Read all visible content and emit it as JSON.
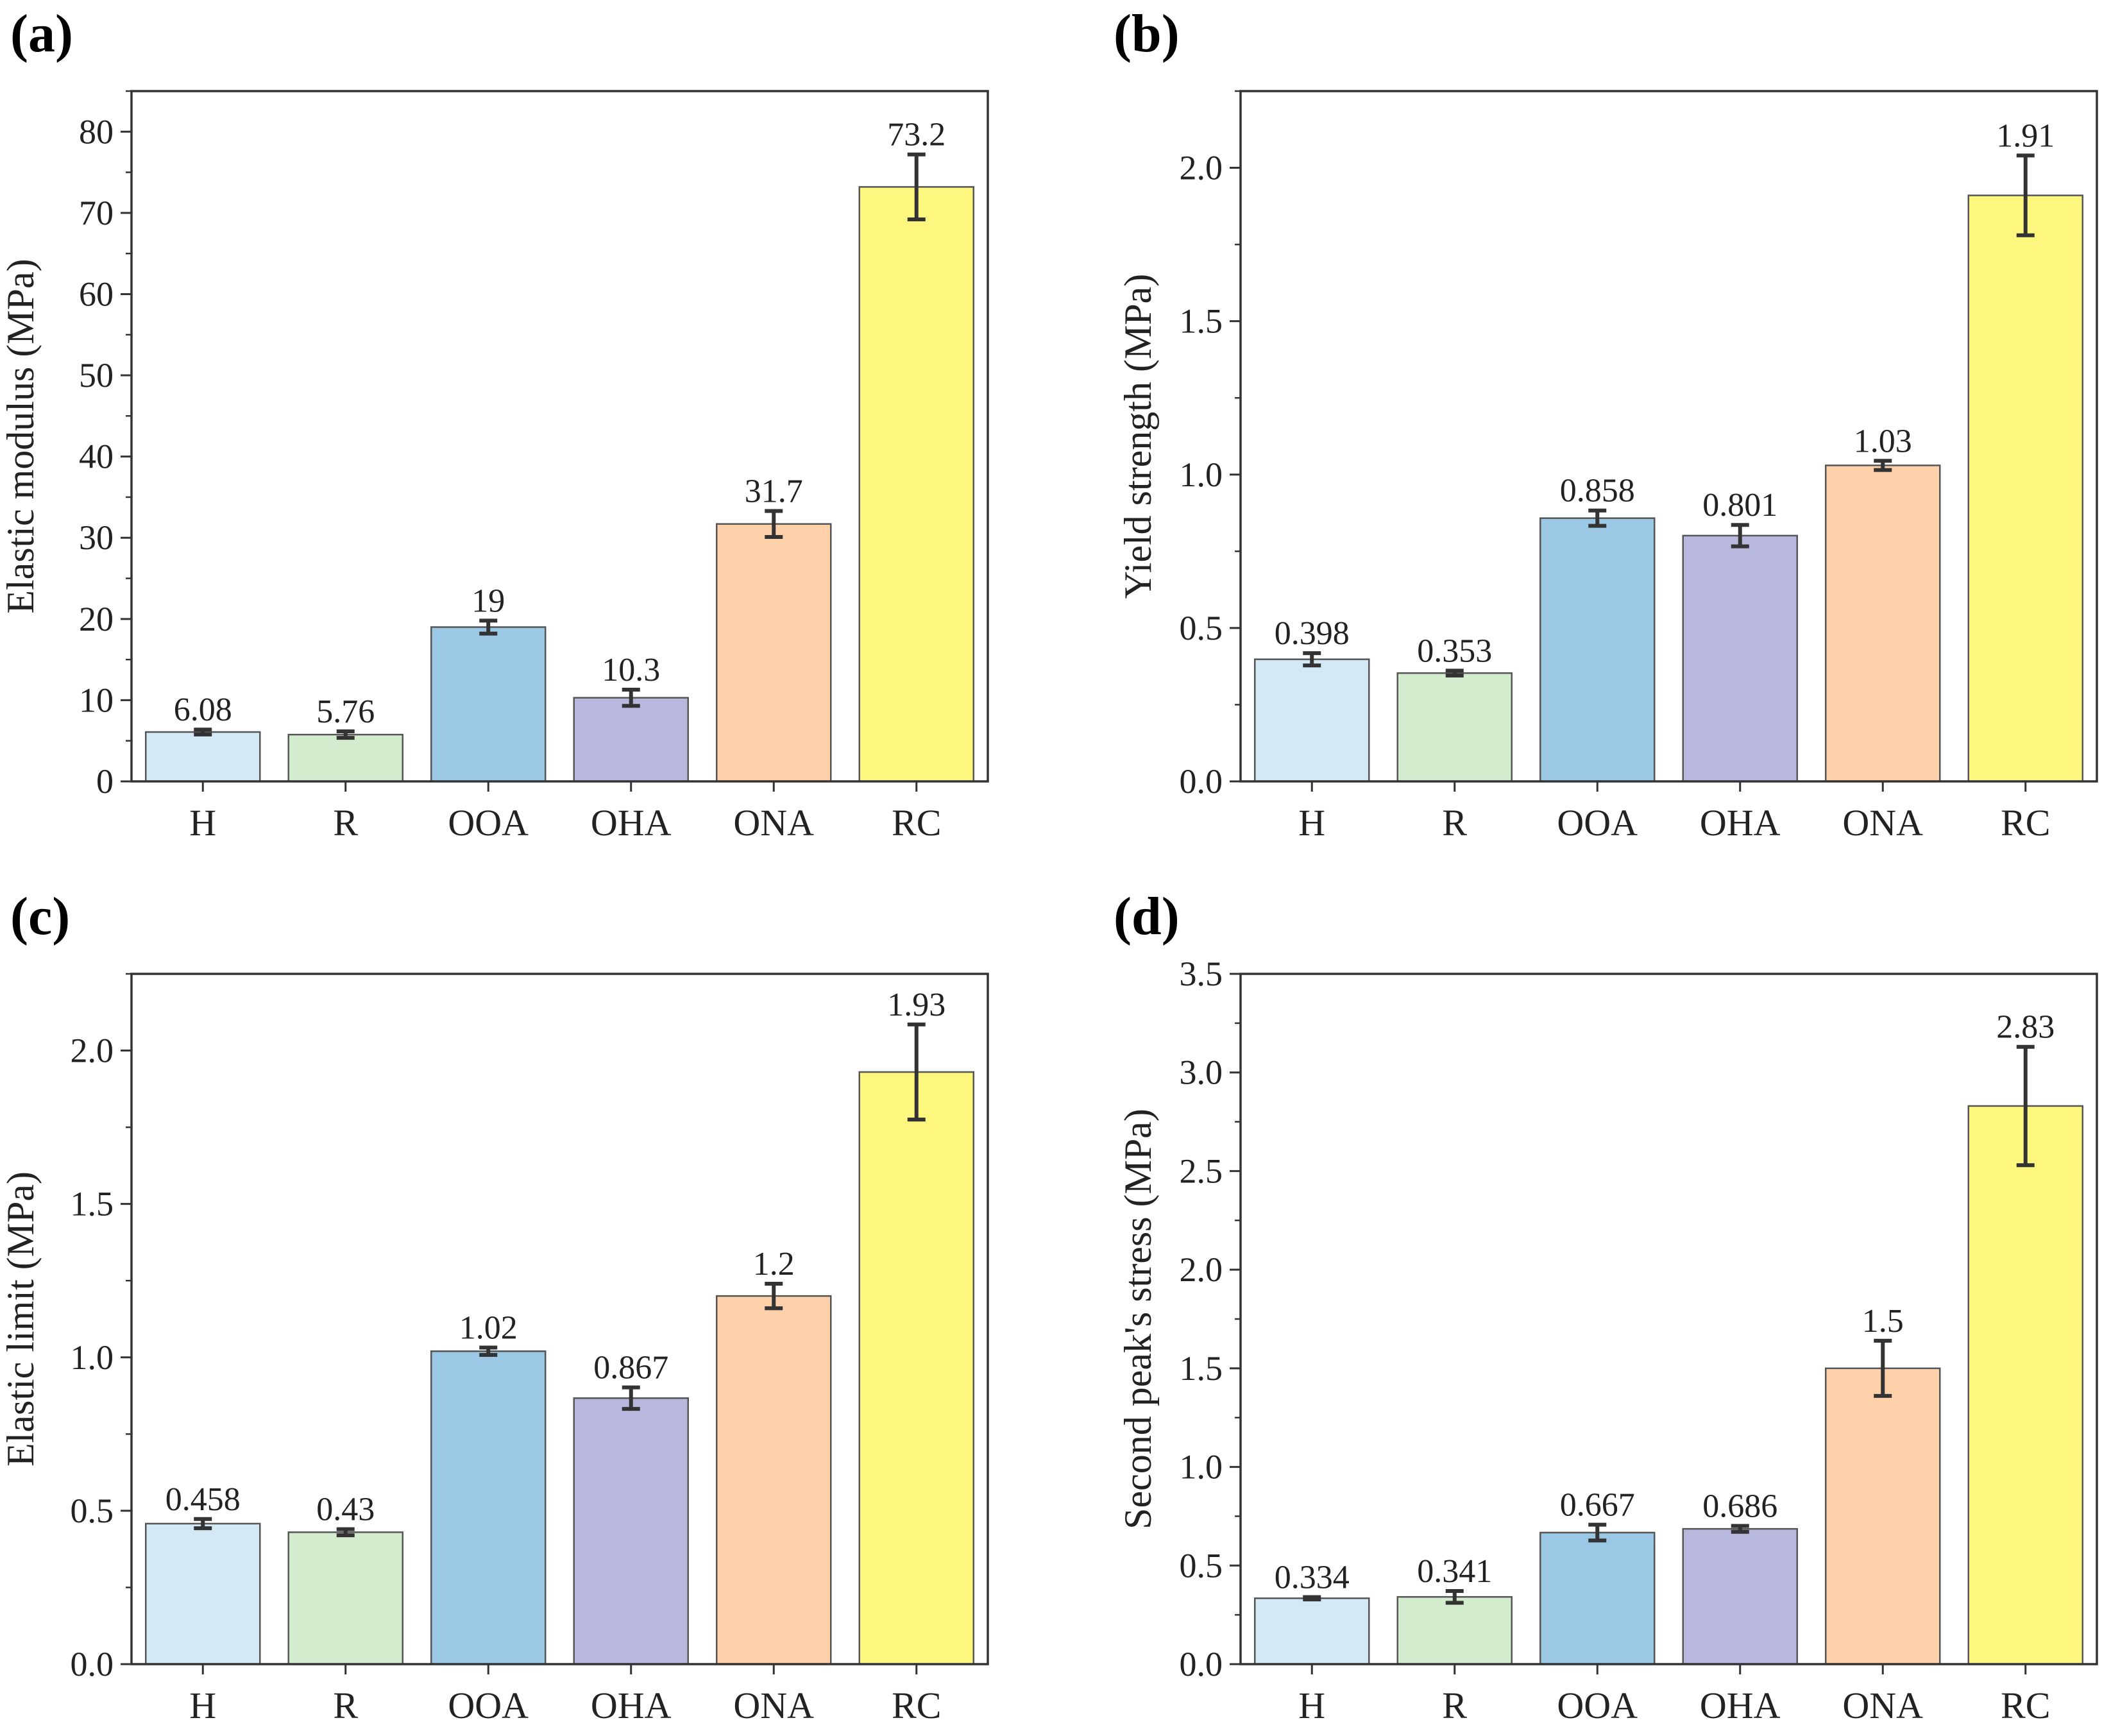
{
  "chart_data": [
    {
      "type": "bar",
      "panel_label": "(a)",
      "title": "",
      "xlabel": "",
      "ylabel": "Elastic modulus (MPa)",
      "categories": [
        "H",
        "R",
        "OOA",
        "OHA",
        "ONA",
        "RC"
      ],
      "values": [
        6.08,
        5.76,
        19,
        10.3,
        31.7,
        73.2
      ],
      "value_labels": [
        "6.08",
        "5.76",
        "19",
        "10.3",
        "31.7",
        "73.2"
      ],
      "errors": [
        0.3,
        0.4,
        0.8,
        1.0,
        1.6,
        4.0
      ],
      "ylim": [
        0,
        85
      ],
      "yticks": [
        0,
        10,
        20,
        30,
        40,
        50,
        60,
        70,
        80
      ],
      "ytick_labels": [
        "0",
        "10",
        "20",
        "30",
        "40",
        "50",
        "60",
        "70",
        "80"
      ],
      "minor_tick": 5,
      "colors": [
        "#d3e9f5",
        "#d4ecce",
        "#9ac8e5",
        "#b8b7de",
        "#fed1aa",
        "#fdf77f"
      ],
      "grid": false,
      "legend": "none"
    },
    {
      "type": "bar",
      "panel_label": "(b)",
      "title": "",
      "xlabel": "",
      "ylabel": "Yield strength (MPa)",
      "categories": [
        "H",
        "R",
        "OOA",
        "OHA",
        "ONA",
        "RC"
      ],
      "values": [
        0.398,
        0.353,
        0.858,
        0.801,
        1.03,
        1.91
      ],
      "value_labels": [
        "0.398",
        "0.353",
        "0.858",
        "0.801",
        "1.03",
        "1.91"
      ],
      "errors": [
        0.02,
        0.008,
        0.025,
        0.035,
        0.015,
        0.13
      ],
      "ylim": [
        0,
        2.25
      ],
      "yticks": [
        0,
        0.5,
        1.0,
        1.5,
        2.0
      ],
      "ytick_labels": [
        "0.0",
        "0.5",
        "1.0",
        "1.5",
        "2.0"
      ],
      "minor_tick": 0.25,
      "colors": [
        "#d3e9f5",
        "#d4ecce",
        "#9ac8e5",
        "#b8b7de",
        "#fed1aa",
        "#fdf77f"
      ],
      "grid": false,
      "legend": "none"
    },
    {
      "type": "bar",
      "panel_label": "(c)",
      "title": "",
      "xlabel": "",
      "ylabel": "Elastic limit (MPa)",
      "categories": [
        "H",
        "R",
        "OOA",
        "OHA",
        "ONA",
        "RC"
      ],
      "values": [
        0.458,
        0.43,
        1.02,
        0.867,
        1.2,
        1.93
      ],
      "value_labels": [
        "0.458",
        "0.43",
        "1.02",
        "0.867",
        "1.2",
        "1.93"
      ],
      "errors": [
        0.015,
        0.01,
        0.012,
        0.035,
        0.04,
        0.155
      ],
      "ylim": [
        0,
        2.25
      ],
      "yticks": [
        0,
        0.5,
        1.0,
        1.5,
        2.0
      ],
      "ytick_labels": [
        "0.0",
        "0.5",
        "1.0",
        "1.5",
        "2.0"
      ],
      "minor_tick": 0.25,
      "colors": [
        "#d3e9f5",
        "#d4ecce",
        "#9ac8e5",
        "#b8b7de",
        "#fed1aa",
        "#fdf77f"
      ],
      "grid": false,
      "legend": "none"
    },
    {
      "type": "bar",
      "panel_label": "(d)",
      "title": "",
      "xlabel": "",
      "ylabel": "Second peak's stress (MPa)",
      "categories": [
        "H",
        "R",
        "OOA",
        "OHA",
        "ONA",
        "RC"
      ],
      "values": [
        0.334,
        0.341,
        0.667,
        0.686,
        1.5,
        2.83
      ],
      "value_labels": [
        "0.334",
        "0.341",
        "0.667",
        "0.686",
        "1.5",
        "2.83"
      ],
      "errors": [
        0.006,
        0.03,
        0.04,
        0.015,
        0.14,
        0.3
      ],
      "ylim": [
        0,
        3.5
      ],
      "yticks": [
        0,
        0.5,
        1.0,
        1.5,
        2.0,
        2.5,
        3.0,
        3.5
      ],
      "ytick_labels": [
        "0.0",
        "0.5",
        "1.0",
        "1.5",
        "2.0",
        "2.5",
        "3.0",
        "3.5"
      ],
      "minor_tick": 0.25,
      "colors": [
        "#d3e9f5",
        "#d4ecce",
        "#9ac8e5",
        "#b8b7de",
        "#fed1aa",
        "#fdf77f"
      ],
      "grid": false,
      "legend": "none"
    }
  ]
}
